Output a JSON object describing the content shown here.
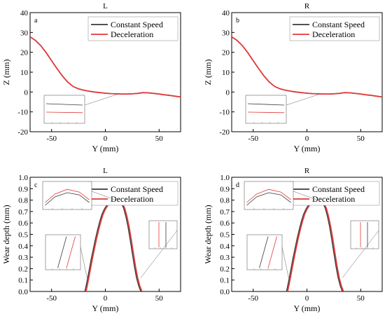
{
  "colors": {
    "constant": "#3a3a3a",
    "decel": "#e03a3a",
    "frame": "#000000",
    "inset": "#666666"
  },
  "chart_data": [
    {
      "type": "line",
      "panel": "a",
      "title": "L",
      "xlabel": "Y (mm)",
      "ylabel": "Z (mm)",
      "xlim": [
        -70,
        70
      ],
      "ylim": [
        -20,
        40
      ],
      "xticks": [
        -50,
        0,
        50
      ],
      "yticks": [
        -20,
        -10,
        0,
        10,
        20,
        30,
        40
      ],
      "legend": "top-right",
      "series": [
        {
          "name": "Constant Speed",
          "color_key": "constant",
          "x": [
            -70,
            -65,
            -60,
            -55,
            -50,
            -45,
            -40,
            -35,
            -30,
            -25,
            -20,
            -15,
            -10,
            -5,
            0,
            5,
            10,
            15,
            20,
            25,
            30,
            35,
            40,
            45,
            50,
            55,
            60,
            65,
            70
          ],
          "y": [
            27.8,
            26.0,
            23.3,
            19.8,
            15.8,
            11.8,
            8.1,
            5.0,
            2.8,
            1.6,
            0.9,
            0.4,
            0.0,
            -0.3,
            -0.6,
            -0.8,
            -0.9,
            -1.0,
            -1.0,
            -0.9,
            -0.7,
            -0.3,
            -0.4,
            -0.7,
            -1.0,
            -1.4,
            -1.7,
            -2.1,
            -2.5
          ]
        },
        {
          "name": "Deceleration",
          "color_key": "decel",
          "x": [
            -70,
            -65,
            -60,
            -55,
            -50,
            -45,
            -40,
            -35,
            -30,
            -25,
            -20,
            -15,
            -10,
            -5,
            0,
            5,
            10,
            15,
            20,
            25,
            30,
            35,
            40,
            45,
            50,
            55,
            60,
            65,
            70
          ],
          "y": [
            27.8,
            26.0,
            23.3,
            19.8,
            15.8,
            11.8,
            8.1,
            5.0,
            2.8,
            1.6,
            0.9,
            0.4,
            0.0,
            -0.3,
            -0.6,
            -0.8,
            -0.9,
            -1.0,
            -1.0,
            -0.9,
            -0.7,
            -0.3,
            -0.4,
            -0.7,
            -1.0,
            -1.4,
            -1.7,
            -2.1,
            -2.5
          ]
        }
      ]
    },
    {
      "type": "line",
      "panel": "b",
      "title": "R",
      "xlabel": "Y (mm)",
      "ylabel": "Z (mm)",
      "xlim": [
        -70,
        70
      ],
      "ylim": [
        -20,
        40
      ],
      "xticks": [
        -50,
        0,
        50
      ],
      "yticks": [
        -20,
        -10,
        0,
        10,
        20,
        30,
        40
      ],
      "legend": "top-right",
      "series": [
        {
          "name": "Constant Speed",
          "color_key": "constant",
          "x": [
            -70,
            -65,
            -60,
            -55,
            -50,
            -45,
            -40,
            -35,
            -30,
            -25,
            -20,
            -15,
            -10,
            -5,
            0,
            5,
            10,
            15,
            20,
            25,
            30,
            35,
            40,
            45,
            50,
            55,
            60,
            65,
            70
          ],
          "y": [
            27.8,
            26.0,
            23.3,
            19.8,
            15.8,
            11.8,
            8.1,
            5.0,
            2.8,
            1.6,
            0.9,
            0.4,
            0.0,
            -0.3,
            -0.6,
            -0.8,
            -0.9,
            -1.0,
            -1.0,
            -0.9,
            -0.7,
            -0.3,
            -0.4,
            -0.7,
            -1.0,
            -1.4,
            -1.7,
            -2.1,
            -2.5
          ]
        },
        {
          "name": "Deceleration",
          "color_key": "decel",
          "x": [
            -70,
            -65,
            -60,
            -55,
            -50,
            -45,
            -40,
            -35,
            -30,
            -25,
            -20,
            -15,
            -10,
            -5,
            0,
            5,
            10,
            15,
            20,
            25,
            30,
            35,
            40,
            45,
            50,
            55,
            60,
            65,
            70
          ],
          "y": [
            27.8,
            26.0,
            23.3,
            19.8,
            15.8,
            11.8,
            8.1,
            5.0,
            2.8,
            1.6,
            0.9,
            0.4,
            0.0,
            -0.3,
            -0.6,
            -0.8,
            -0.9,
            -1.0,
            -1.0,
            -0.9,
            -0.7,
            -0.3,
            -0.4,
            -0.7,
            -1.0,
            -1.4,
            -1.7,
            -2.1,
            -2.5
          ]
        }
      ]
    },
    {
      "type": "line",
      "panel": "c",
      "title": "L",
      "xlabel": "Y (mm)",
      "ylabel": "Wear depth (mm)",
      "xlim": [
        -70,
        70
      ],
      "ylim": [
        0,
        1.0
      ],
      "xticks": [
        -50,
        0,
        50
      ],
      "yticks": [
        0.0,
        0.1,
        0.2,
        0.3,
        0.4,
        0.5,
        0.6,
        0.7,
        0.8,
        0.9,
        1.0
      ],
      "legend": "top-right",
      "series": [
        {
          "name": "Constant Speed",
          "color_key": "constant",
          "x": [
            -19,
            -17,
            -15,
            -13,
            -11,
            -9,
            -7,
            -5,
            -3,
            -1,
            1,
            3,
            5,
            7,
            9,
            11,
            13,
            15,
            17,
            19,
            21,
            23,
            25,
            27,
            29,
            31,
            33
          ],
          "y": [
            0.0,
            0.09,
            0.19,
            0.29,
            0.38,
            0.47,
            0.55,
            0.62,
            0.68,
            0.72,
            0.75,
            0.77,
            0.785,
            0.795,
            0.8,
            0.8,
            0.79,
            0.77,
            0.73,
            0.66,
            0.57,
            0.46,
            0.34,
            0.22,
            0.12,
            0.05,
            0.0
          ]
        },
        {
          "name": "Deceleration",
          "color_key": "decel",
          "x": [
            -18,
            -16,
            -14,
            -12,
            -10,
            -8,
            -6,
            -4,
            -2,
            0,
            2,
            4,
            6,
            8,
            10,
            12,
            14,
            16,
            18,
            20,
            22,
            24,
            26,
            28,
            30,
            32,
            34
          ],
          "y": [
            0.0,
            0.09,
            0.19,
            0.29,
            0.38,
            0.47,
            0.55,
            0.62,
            0.68,
            0.72,
            0.75,
            0.77,
            0.785,
            0.795,
            0.805,
            0.805,
            0.795,
            0.77,
            0.73,
            0.66,
            0.57,
            0.46,
            0.34,
            0.22,
            0.12,
            0.05,
            0.0
          ]
        }
      ]
    },
    {
      "type": "line",
      "panel": "d",
      "title": "R",
      "xlabel": "Y (mm)",
      "ylabel": "Wear depth (mm)",
      "xlim": [
        -70,
        70
      ],
      "ylim": [
        0,
        1.0
      ],
      "xticks": [
        -50,
        0,
        50
      ],
      "yticks": [
        0.0,
        0.1,
        0.2,
        0.3,
        0.4,
        0.5,
        0.6,
        0.7,
        0.8,
        0.9,
        1.0
      ],
      "legend": "top-right",
      "series": [
        {
          "name": "Constant Speed",
          "color_key": "constant",
          "x": [
            -19,
            -17,
            -15,
            -13,
            -11,
            -9,
            -7,
            -5,
            -3,
            -1,
            1,
            3,
            5,
            7,
            9,
            11,
            13,
            15,
            17,
            19,
            21,
            23,
            25,
            27,
            29,
            31,
            33
          ],
          "y": [
            0.0,
            0.09,
            0.19,
            0.29,
            0.38,
            0.47,
            0.55,
            0.62,
            0.68,
            0.72,
            0.75,
            0.77,
            0.785,
            0.795,
            0.8,
            0.8,
            0.79,
            0.77,
            0.73,
            0.66,
            0.57,
            0.46,
            0.34,
            0.22,
            0.12,
            0.05,
            0.0
          ]
        },
        {
          "name": "Deceleration",
          "color_key": "decel",
          "x": [
            -18,
            -16,
            -14,
            -12,
            -10,
            -8,
            -6,
            -4,
            -2,
            0,
            2,
            4,
            6,
            8,
            10,
            12,
            14,
            16,
            18,
            20,
            22,
            24,
            26,
            28,
            30,
            32,
            34
          ],
          "y": [
            0.0,
            0.09,
            0.19,
            0.29,
            0.38,
            0.47,
            0.55,
            0.62,
            0.68,
            0.72,
            0.75,
            0.77,
            0.785,
            0.795,
            0.805,
            0.805,
            0.795,
            0.77,
            0.73,
            0.66,
            0.57,
            0.46,
            0.34,
            0.22,
            0.12,
            0.05,
            0.0
          ]
        }
      ]
    }
  ]
}
